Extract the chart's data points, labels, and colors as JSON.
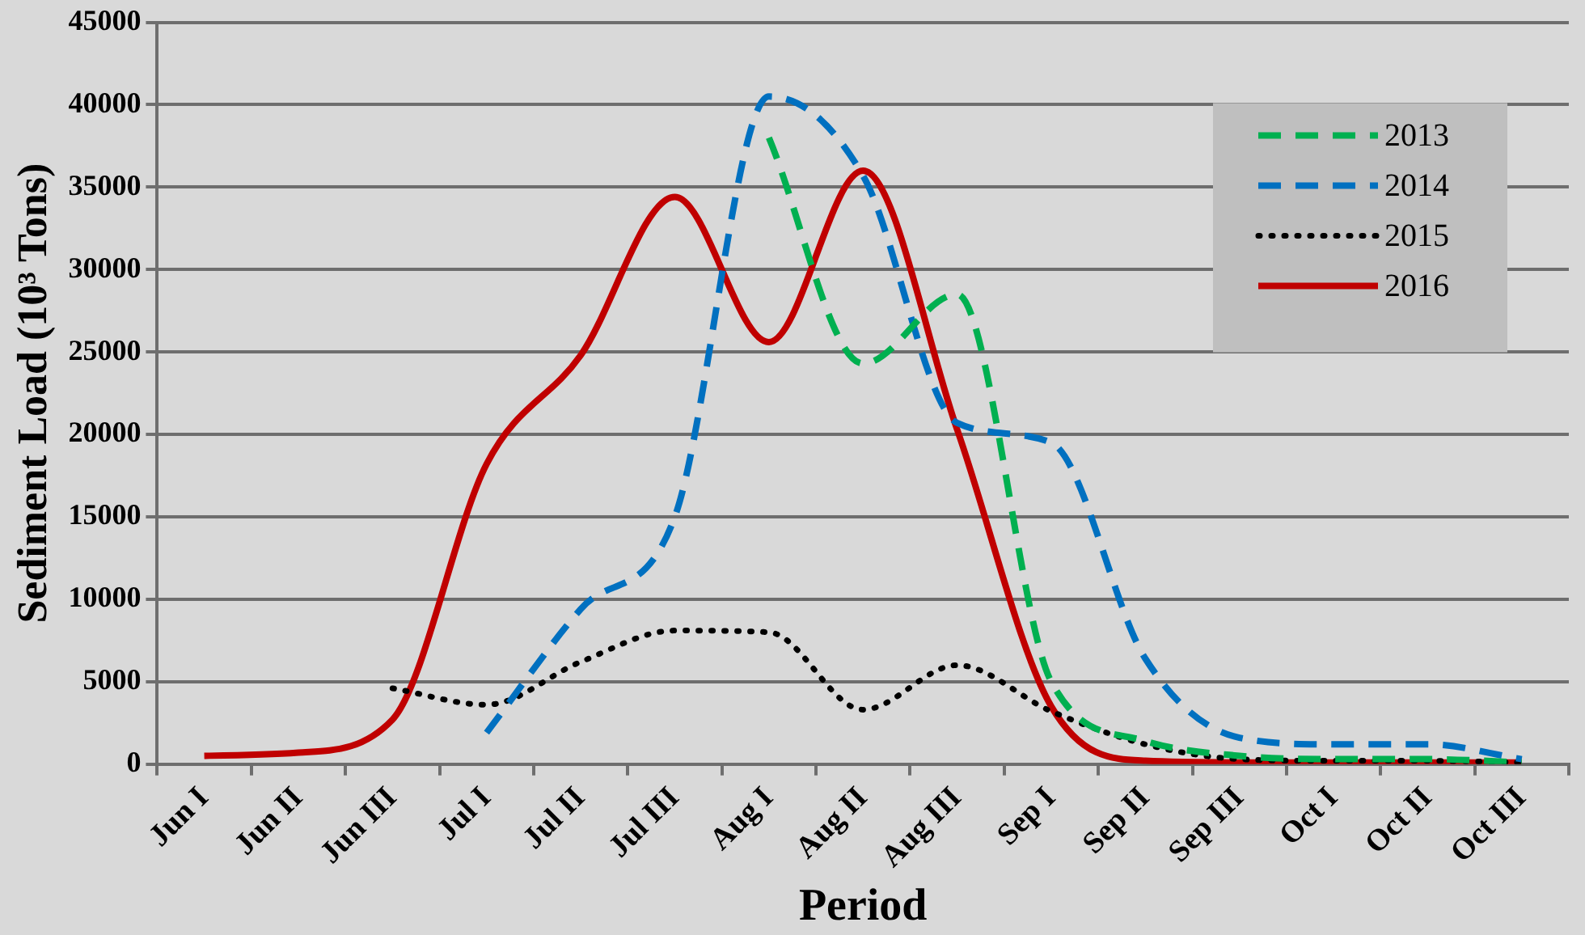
{
  "chart_data": {
    "type": "line",
    "xlabel": "Period",
    "ylabel": "Sediment Load (10³ Tons)",
    "categories": [
      "Jun I",
      "Jun II",
      "Jun III",
      "Jul I",
      "Jul II",
      "Jul III",
      "Aug I",
      "Aug II",
      "Aug III",
      "Sep I",
      "Sep II",
      "Sep III",
      "Oct I",
      "Oct II",
      "Oct III"
    ],
    "series": [
      {
        "name": "2013",
        "color": "#00b050",
        "line_style": "dashed",
        "values": [
          null,
          null,
          null,
          null,
          null,
          null,
          38000,
          24300,
          28500,
          5000,
          1400,
          500,
          300,
          300,
          100
        ]
      },
      {
        "name": "2014",
        "color": "#0070c0",
        "line_style": "dashed",
        "values": [
          null,
          null,
          null,
          1900,
          9400,
          15000,
          40500,
          35700,
          20700,
          19500,
          6400,
          1600,
          1200,
          1200,
          300
        ]
      },
      {
        "name": "2015",
        "color": "#000000",
        "line_style": "dotted",
        "values": [
          null,
          null,
          4600,
          3600,
          6200,
          8100,
          8000,
          3300,
          6000,
          3200,
          1200,
          300,
          200,
          200,
          100
        ]
      },
      {
        "name": "2016",
        "color": "#c00000",
        "line_style": "solid",
        "values": [
          500,
          700,
          2700,
          18200,
          24800,
          34400,
          25600,
          36000,
          20300,
          3500,
          200,
          100,
          100,
          100,
          100
        ]
      }
    ],
    "ylim": [
      0,
      45000
    ],
    "yticks": [
      0,
      5000,
      10000,
      15000,
      20000,
      25000,
      30000,
      35000,
      40000,
      45000
    ],
    "grid": "y",
    "legend": "top right",
    "marker": "none"
  }
}
